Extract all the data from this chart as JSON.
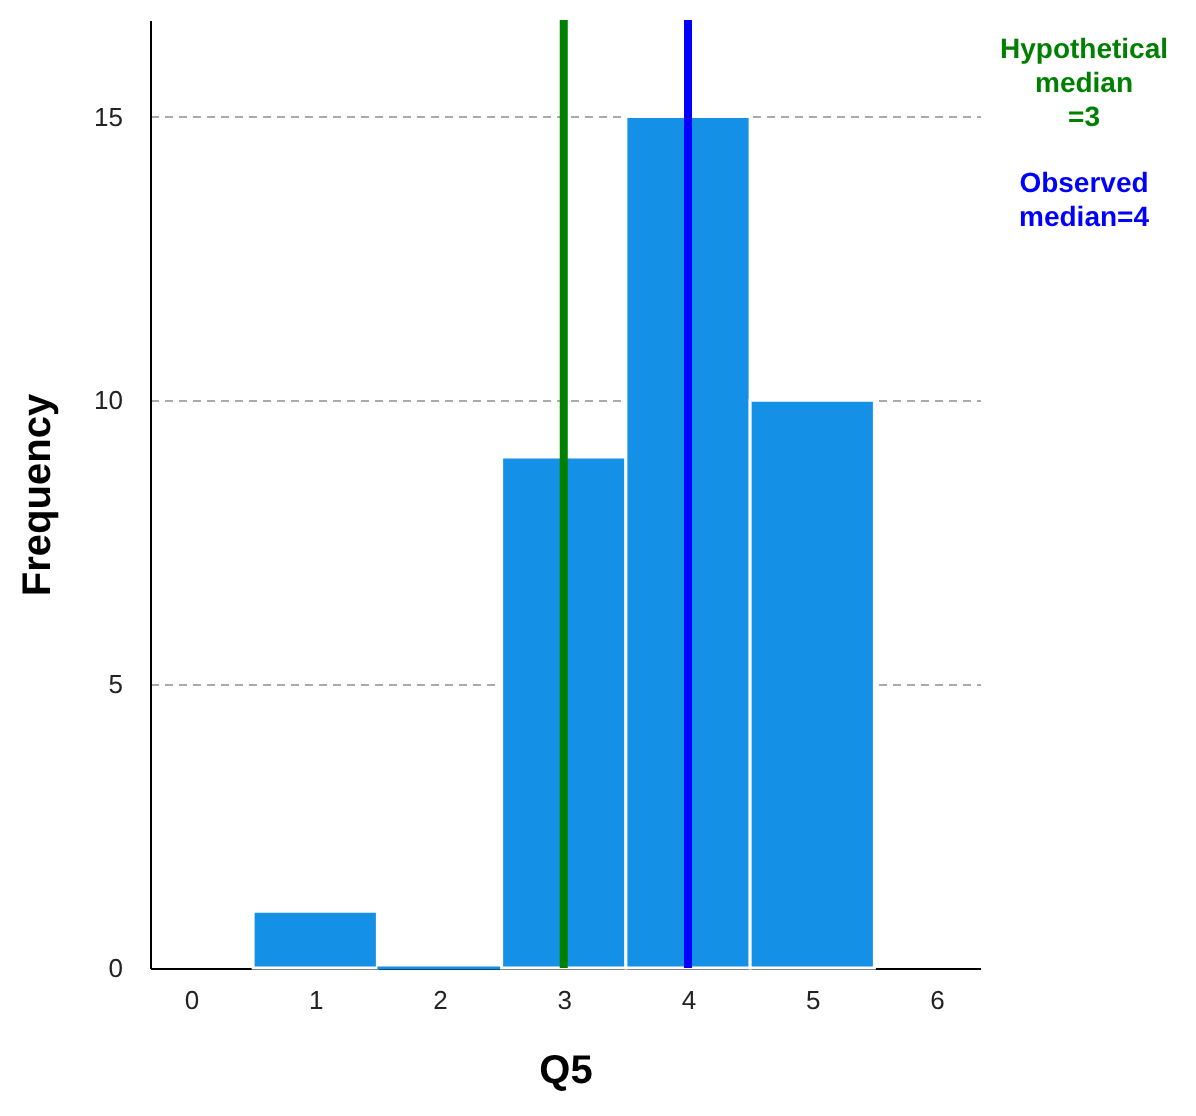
{
  "chart_data": {
    "type": "histogram",
    "xlabel": "Q5",
    "ylabel": "Frequency",
    "bins": [
      0.5,
      1.5,
      2.5,
      3.5,
      4.5,
      5.5
    ],
    "values": [
      1,
      0,
      9,
      15,
      10
    ],
    "color": "#1490e6",
    "xlim": [
      -0.33,
      6.35
    ],
    "xticks": [
      {
        "value": 0,
        "label": "0"
      },
      {
        "value": 1,
        "label": "1"
      },
      {
        "value": 2,
        "label": "2"
      },
      {
        "value": 3,
        "label": "3"
      },
      {
        "value": 4,
        "label": "4"
      },
      {
        "value": 5,
        "label": "5"
      },
      {
        "value": 6,
        "label": "6"
      }
    ],
    "ylim": [
      0,
      16.7
    ],
    "yticks": [
      0,
      5,
      10,
      15
    ],
    "grid": "y",
    "ref_lines": [
      {
        "axis": "x",
        "value": 3,
        "label": "Hypothetical\nmedian\n=3",
        "color": "#008000"
      },
      {
        "axis": "x",
        "value": 4,
        "label": "Observed\nmedian=4",
        "color": "#0000ff"
      }
    ]
  }
}
